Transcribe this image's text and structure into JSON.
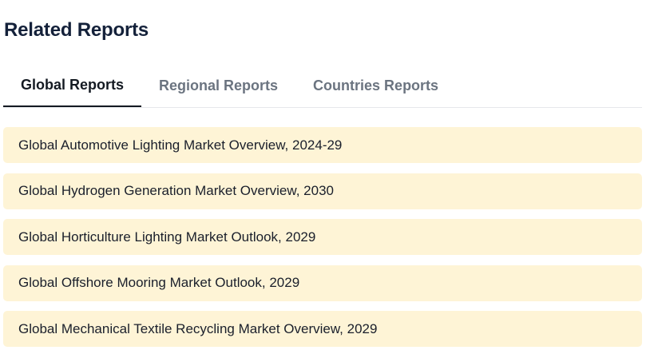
{
  "section": {
    "title": "Related Reports"
  },
  "tabs": [
    {
      "label": "Global Reports",
      "active": true
    },
    {
      "label": "Regional Reports",
      "active": false
    },
    {
      "label": "Countries Reports",
      "active": false
    }
  ],
  "reports": [
    {
      "title": "Global Automotive Lighting Market Overview, 2024-29"
    },
    {
      "title": "Global Hydrogen Generation Market Overview, 2030"
    },
    {
      "title": "Global Horticulture Lighting Market Outlook, 2029"
    },
    {
      "title": "Global Offshore Mooring Market Outlook, 2029"
    },
    {
      "title": "Global Mechanical Textile Recycling Market Overview, 2029"
    }
  ],
  "colors": {
    "item_background": "#fef4d6",
    "active_tab": "#141a22",
    "inactive_tab": "#6b7480"
  }
}
